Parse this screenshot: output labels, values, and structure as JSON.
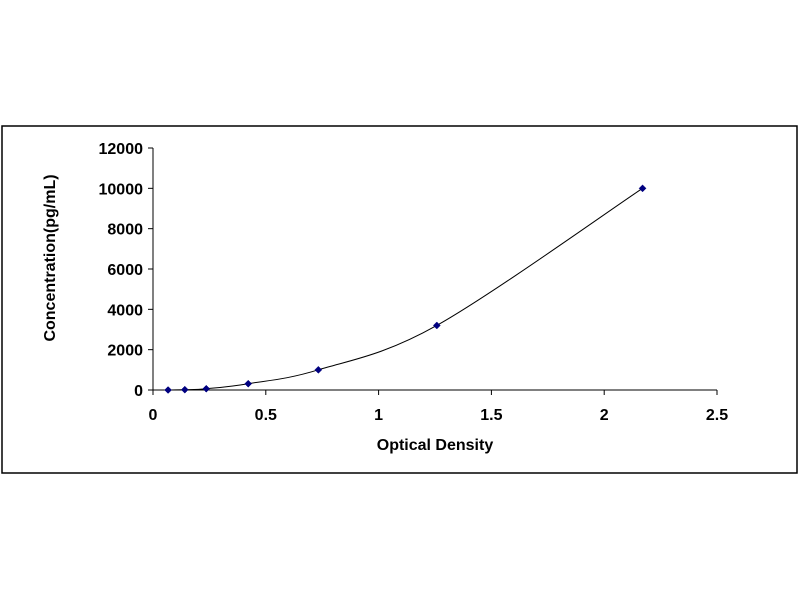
{
  "chart_data": {
    "type": "scatter",
    "title": "",
    "xlabel": "Optical Density",
    "ylabel": "Concentration(pg/mL)",
    "xlim": [
      0,
      2.5
    ],
    "ylim": [
      0,
      12000
    ],
    "x_ticks": [
      "0",
      "0.5",
      "1",
      "1.5",
      "2",
      "2.5"
    ],
    "y_ticks": [
      "0",
      "2000",
      "4000",
      "6000",
      "8000",
      "10000",
      "12000"
    ],
    "grid": false,
    "legend": "none",
    "trendline": "smooth",
    "series": [
      {
        "x": [
          0.067,
          0.141,
          0.236,
          0.422,
          0.733,
          1.258,
          2.17
        ],
        "y": [
          0,
          15.6,
          62.5,
          312.5,
          1000,
          3200,
          10000
        ],
        "color": "#000080"
      }
    ]
  }
}
